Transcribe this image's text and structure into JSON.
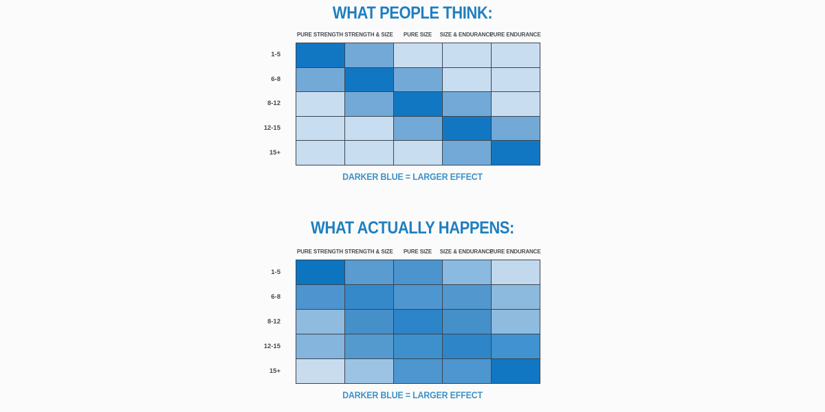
{
  "page": {
    "background": "#fbfbfb"
  },
  "colors": {
    "title_blue": "#1e7fc0",
    "caption_blue": "#3e92c6",
    "label_gray": "#45484d",
    "grid_border": "#394450",
    "scale_darkest": "#1277c2",
    "scale_medium": "#72a9d7",
    "scale_lightest": "#c9ddf0"
  },
  "chart_data": [
    {
      "type": "heatmap",
      "title": "WHAT PEOPLE THINK:",
      "legend": "DARKER BLUE = LARGER EFFECT",
      "legend_position": "bottom",
      "columns": [
        "PURE STRENGTH",
        "STRENGTH & SIZE",
        "PURE SIZE",
        "SIZE & ENDURANCE",
        "PURE ENDURANCE"
      ],
      "rows": [
        "1-5",
        "6-8",
        "8-12",
        "12-15",
        "15+"
      ],
      "effect_levels": [
        [
          5,
          3,
          1,
          1,
          1
        ],
        [
          3,
          5,
          3,
          1,
          1
        ],
        [
          1,
          3,
          5,
          3,
          1
        ],
        [
          1,
          1,
          3,
          5,
          3
        ],
        [
          1,
          1,
          1,
          3,
          5
        ]
      ],
      "cell_colors": [
        [
          "#1277c2",
          "#72a9d7",
          "#c9ddf0",
          "#c9ddf0",
          "#c9ddf0"
        ],
        [
          "#72a9d7",
          "#1277c2",
          "#72a9d7",
          "#c9ddf0",
          "#c9ddf0"
        ],
        [
          "#c9ddf0",
          "#72a9d7",
          "#1277c2",
          "#72a9d7",
          "#c9ddf0"
        ],
        [
          "#c9ddf0",
          "#c9ddf0",
          "#72a9d7",
          "#1277c2",
          "#72a9d7"
        ],
        [
          "#c9ddf0",
          "#c9ddf0",
          "#c9ddf0",
          "#72a9d7",
          "#1277c2"
        ]
      ]
    },
    {
      "type": "heatmap",
      "title": "WHAT ACTUALLY HAPPENS:",
      "legend": "DARKER BLUE = LARGER EFFECT",
      "legend_position": "bottom",
      "columns": [
        "PURE STRENGTH",
        "STRENGTH & SIZE",
        "PURE SIZE",
        "SIZE & ENDURANCE",
        "PURE ENDURANCE"
      ],
      "rows": [
        "1-5",
        "6-8",
        "8-12",
        "12-15",
        "15+"
      ],
      "effect_levels": [
        [
          5,
          3,
          3,
          2,
          1
        ],
        [
          3,
          4,
          3,
          3,
          2
        ],
        [
          2,
          3,
          4,
          3,
          2
        ],
        [
          2,
          3,
          3,
          4,
          3
        ],
        [
          1,
          2,
          3,
          3,
          5
        ]
      ],
      "cell_colors": [
        [
          "#0d74c0",
          "#5a9bd0",
          "#4b94cd",
          "#8abadf",
          "#c2d8ec"
        ],
        [
          "#4e94ce",
          "#3689c9",
          "#4e96cf",
          "#5298cf",
          "#8cbadf"
        ],
        [
          "#8fbbdf",
          "#4690ca",
          "#2c85c8",
          "#4690ca",
          "#8fbbdf"
        ],
        [
          "#85b4dc",
          "#549acf",
          "#3d90cc",
          "#2e86c9",
          "#4092d0"
        ],
        [
          "#c8dcee",
          "#9dc3e4",
          "#4e96cf",
          "#4e96cf",
          "#1277c2"
        ]
      ]
    }
  ]
}
